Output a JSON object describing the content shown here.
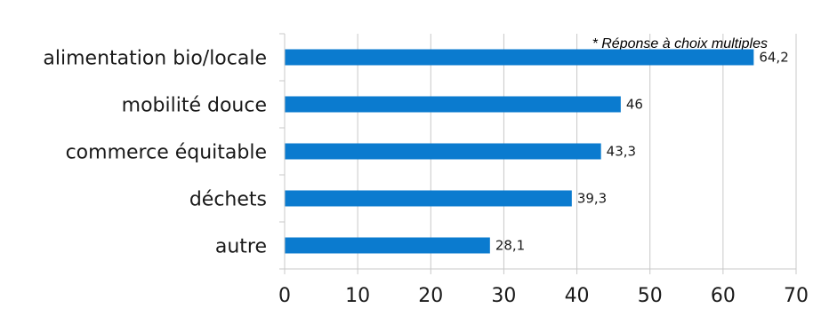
{
  "chart_data": {
    "type": "bar",
    "orientation": "horizontal",
    "note": "* Réponse à choix multiples",
    "categories": [
      "alimentation bio/locale",
      "mobilité douce",
      "commerce équitable",
      "déchets",
      "autre"
    ],
    "values": [
      64.2,
      46,
      43.3,
      39.3,
      28.1
    ],
    "value_labels": [
      "64,2",
      "46",
      "43,3",
      "39,3",
      "28,1"
    ],
    "xlim": [
      0,
      70
    ],
    "xticks": [
      0,
      10,
      20,
      30,
      40,
      50,
      60,
      70
    ],
    "grid": "vertical",
    "bar_color": "#0b7bcf",
    "grid_color": "#c8c8c8"
  }
}
